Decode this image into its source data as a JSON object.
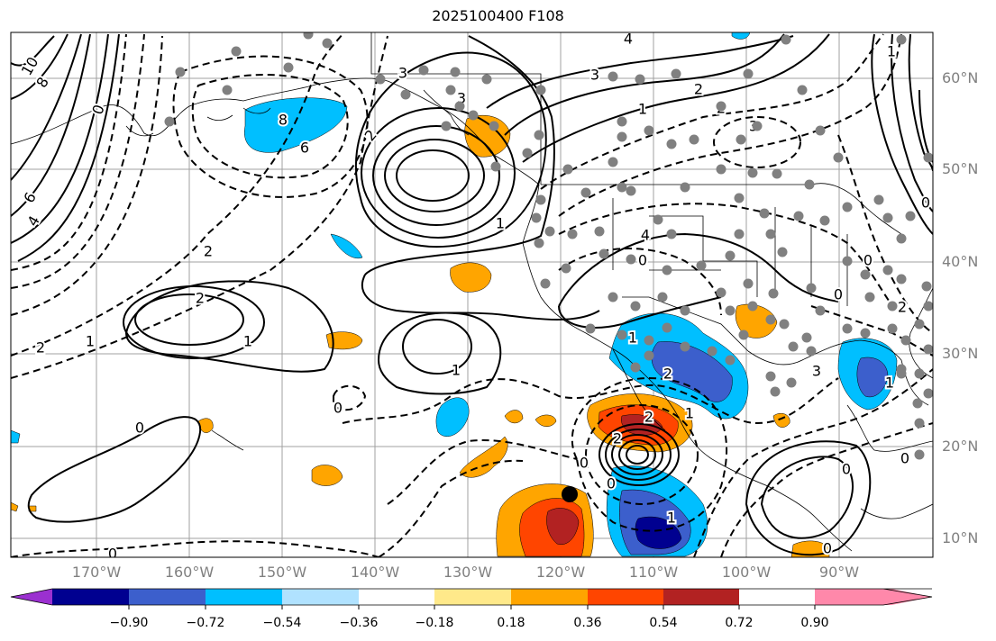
{
  "title": "2025100400 F108",
  "lat_labels": [
    "60°N",
    "50°N",
    "40°N",
    "30°N",
    "20°N",
    "10°N"
  ],
  "lon_labels": [
    "170°W",
    "160°W",
    "150°W",
    "140°W",
    "130°W",
    "120°W",
    "110°W",
    "100°W",
    "90°W"
  ],
  "contour_labels": [
    "10",
    "8",
    "6",
    "4",
    "0",
    "8",
    "6",
    "2",
    "1",
    "2",
    "1",
    "0",
    "2",
    "1",
    "0",
    "1",
    "2",
    "3",
    "4",
    "3",
    "3",
    "2",
    "1",
    "2",
    "3",
    "4",
    "0",
    "1",
    "2",
    "0",
    "0",
    "2",
    "1",
    "0",
    "1",
    "2",
    "3",
    "0",
    "1",
    "0",
    "2",
    "0",
    "0",
    "1",
    "0",
    "0"
  ],
  "colorbar": {
    "ticks": [
      "−0.90",
      "−0.72",
      "−0.54",
      "−0.36",
      "−0.18",
      "0.18",
      "0.36",
      "0.54",
      "0.72",
      "0.90"
    ],
    "colors": [
      "#9b30d0",
      "#000090",
      "#3c5fcc",
      "#00bfff",
      "#b0e2ff",
      "#ffffff",
      "#ffe98a",
      "#ffa500",
      "#ff4500",
      "#b22222",
      "#ff88aa"
    ]
  },
  "colors": {
    "contour": "#000000",
    "grid": "#a0a0a0",
    "station": "#808080",
    "storm_center": "#000000"
  }
}
